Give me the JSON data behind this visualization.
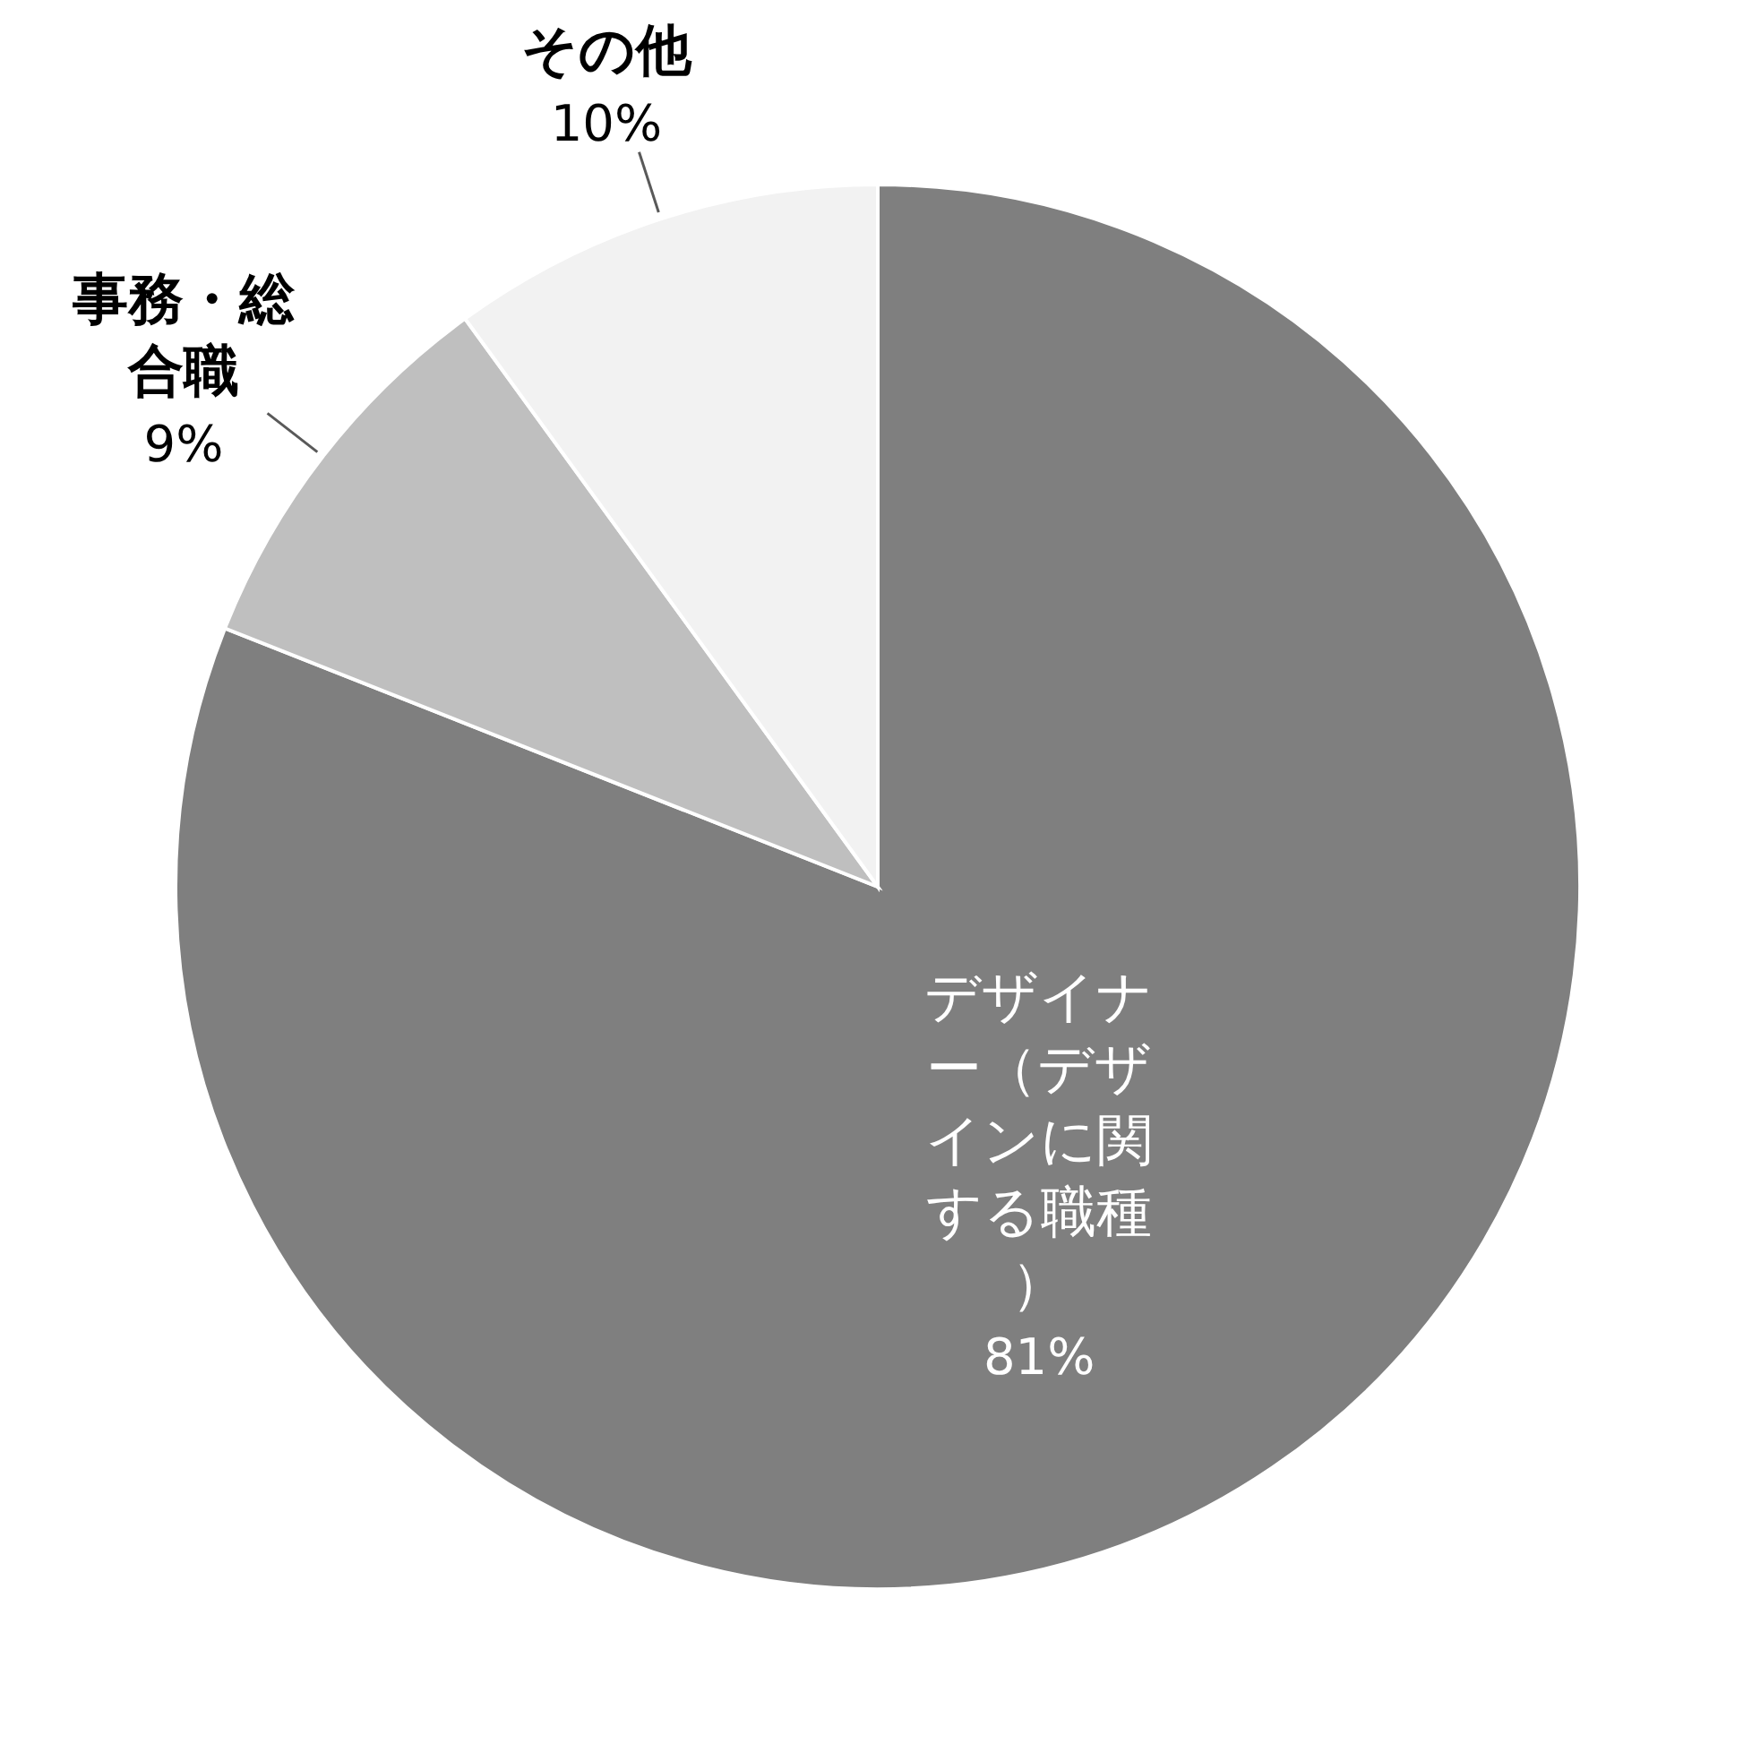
{
  "chart_data": {
    "type": "pie",
    "categories": [
      "デザイナー（デザインに関する職種）",
      "事務・総合職",
      "その他"
    ],
    "values": [
      81,
      9,
      10
    ],
    "colors": [
      "#7f7f7f",
      "#bfbfbf",
      "#f2f2f2"
    ],
    "value_labels": [
      "81%",
      "9%",
      "10%"
    ],
    "legend": false
  }
}
